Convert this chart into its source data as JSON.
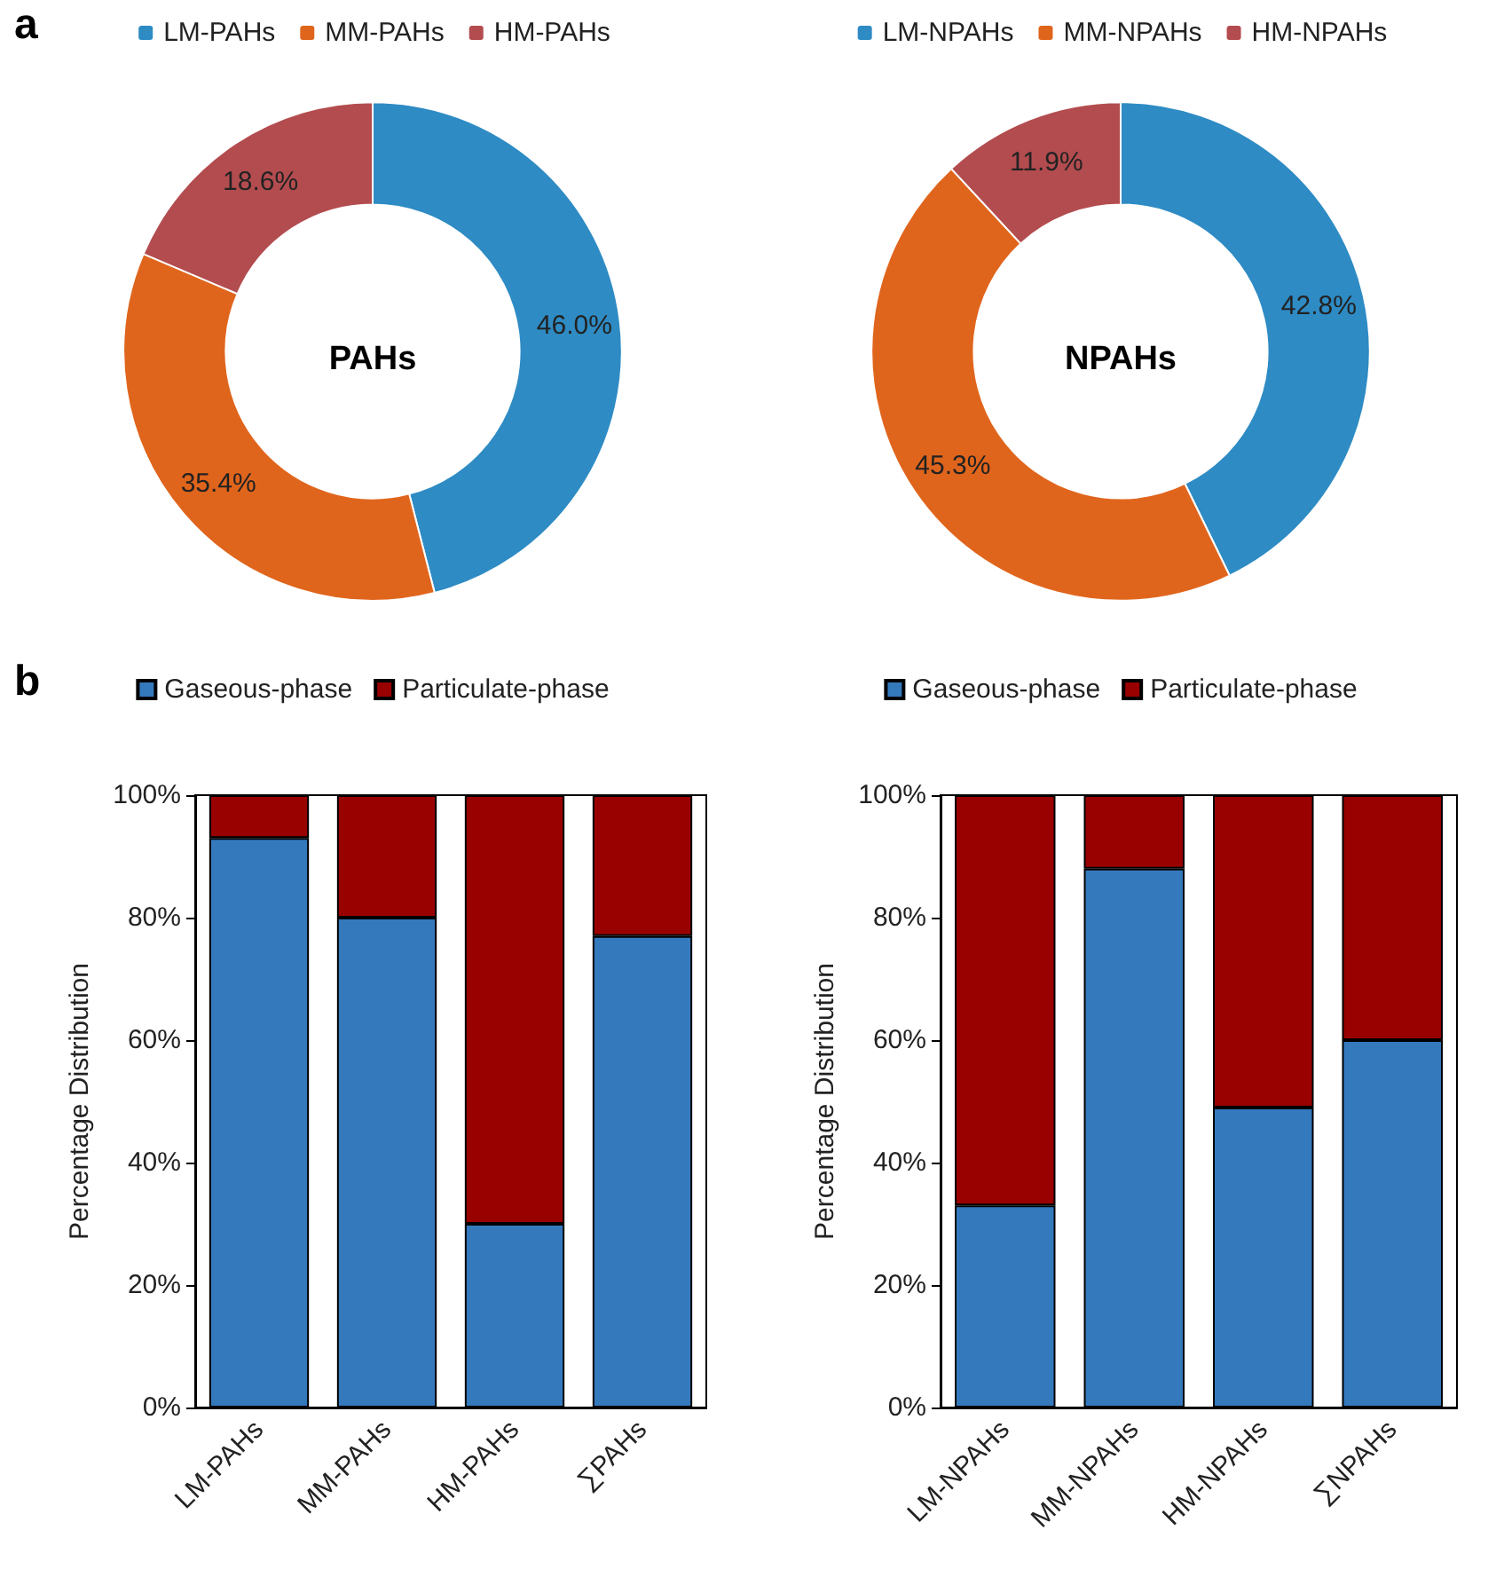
{
  "chart_data": [
    {
      "type": "donut",
      "title": "PAHs",
      "annotations": [
        "a"
      ],
      "categories": [
        "LM-PAHs",
        "MM-PAHs",
        "HM-PAHs"
      ],
      "values": [
        46.0,
        35.4,
        18.6
      ],
      "colors": [
        "#2e8bc4",
        "#e0651c",
        "#b34c4f"
      ],
      "value_labels": [
        "46.0%",
        "35.4%",
        "18.6%"
      ],
      "legend": "top"
    },
    {
      "type": "donut",
      "title": "NPAHs",
      "categories": [
        "LM-NPAHs",
        "MM-NPAHs",
        "HM-NPAHs"
      ],
      "values": [
        42.8,
        45.3,
        11.9
      ],
      "colors": [
        "#2e8bc4",
        "#e0651c",
        "#b34c4f"
      ],
      "value_labels": [
        "42.8%",
        "45.3%",
        "11.9%"
      ],
      "legend": "top"
    },
    {
      "type": "bar",
      "stacked": true,
      "annotations": [
        "b"
      ],
      "ylabel": "Percentage Distribution",
      "categories": [
        "LM-PAHs",
        "MM-PAHs",
        "HM-PAHs",
        "∑PAHs"
      ],
      "series": [
        {
          "name": "Gaseous-phase",
          "color": "#3579bd",
          "values": [
            93,
            80,
            30,
            77
          ]
        },
        {
          "name": "Particulate-phase",
          "color": "#990000",
          "values": [
            7,
            20,
            70,
            23
          ]
        }
      ],
      "ylim": [
        0,
        100
      ],
      "yticks": [
        {
          "value": 0,
          "label": "0%"
        },
        {
          "value": 20,
          "label": "20%"
        },
        {
          "value": 40,
          "label": "40%"
        },
        {
          "value": 60,
          "label": "60%"
        },
        {
          "value": 80,
          "label": "80%"
        },
        {
          "value": 100,
          "label": "100%"
        }
      ],
      "legend": "top"
    },
    {
      "type": "bar",
      "stacked": true,
      "ylabel": "Percentage Distribution",
      "categories": [
        "LM-NPAHs",
        "MM-NPAHs",
        "HM-NPAHs",
        "∑NPAHs"
      ],
      "series": [
        {
          "name": "Gaseous-phase",
          "color": "#3579bd",
          "values": [
            33,
            88,
            49,
            60
          ]
        },
        {
          "name": "Particulate-phase",
          "color": "#990000",
          "values": [
            67,
            12,
            51,
            40
          ]
        }
      ],
      "ylim": [
        0,
        100
      ],
      "yticks": [
        {
          "value": 0,
          "label": "0%"
        },
        {
          "value": 20,
          "label": "20%"
        },
        {
          "value": 40,
          "label": "40%"
        },
        {
          "value": 60,
          "label": "60%"
        },
        {
          "value": 80,
          "label": "80%"
        },
        {
          "value": 100,
          "label": "100%"
        }
      ],
      "legend": "top"
    }
  ]
}
